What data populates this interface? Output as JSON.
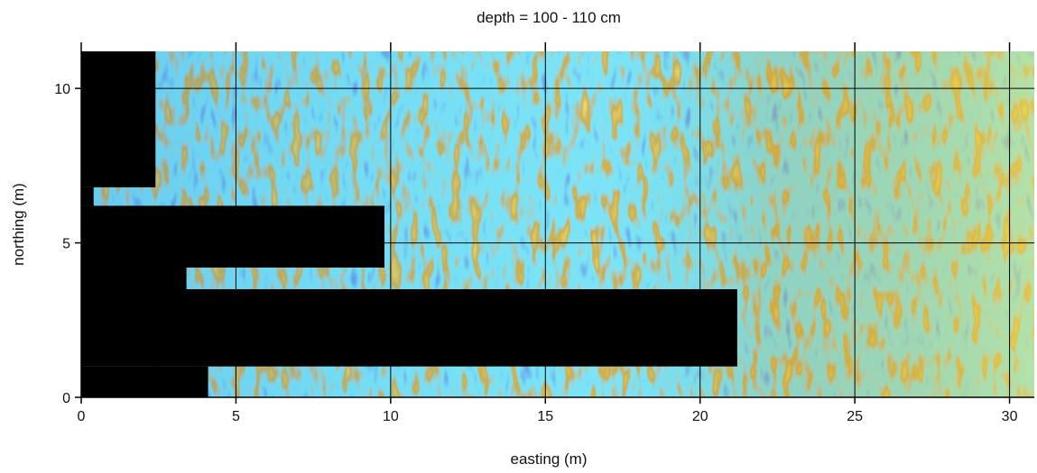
{
  "chart_data": {
    "type": "heatmap",
    "title": "depth = 100 - 110 cm",
    "xlabel": "easting (m)",
    "ylabel": "northing (m)",
    "xlim": [
      0,
      30.8
    ],
    "ylim": [
      0,
      11.2
    ],
    "x_ticks": [
      0,
      5,
      10,
      15,
      20,
      25,
      30
    ],
    "y_ticks": [
      0,
      5,
      10
    ],
    "grid": true,
    "colormap": [
      "#000000",
      "#1e3c9c",
      "#2f7fd8",
      "#33c6ea",
      "#9a6a12",
      "#c79a1e",
      "#f6e04a"
    ],
    "no_data_color": "#000000",
    "no_data_regions": [
      {
        "x": [
          0,
          2.4
        ],
        "y": [
          6.8,
          11.2
        ]
      },
      {
        "x": [
          0,
          0.4
        ],
        "y": [
          6.2,
          6.8
        ]
      },
      {
        "x": [
          0,
          9.8
        ],
        "y": [
          4.2,
          6.2
        ]
      },
      {
        "x": [
          0,
          3.4
        ],
        "y": [
          3.5,
          4.2
        ]
      },
      {
        "x": [
          0,
          21.2
        ],
        "y": [
          1.0,
          3.5
        ]
      },
      {
        "x": [
          0,
          4.1
        ],
        "y": [
          0,
          1.0
        ]
      }
    ]
  }
}
